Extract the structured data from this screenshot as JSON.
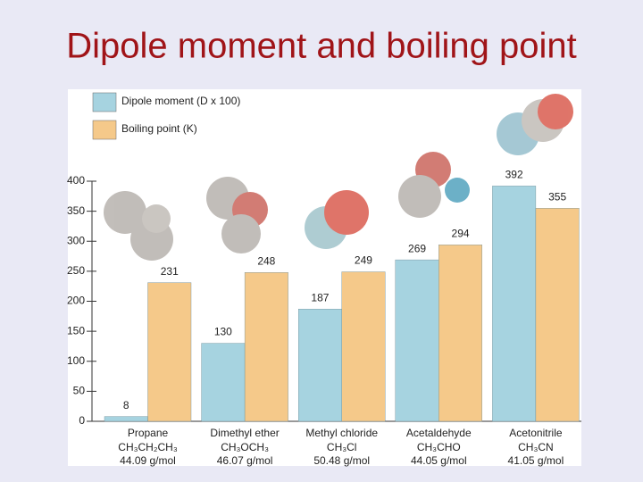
{
  "chart_data": {
    "type": "bar",
    "title": "Dipole moment and boiling point",
    "categories": [
      "Propane",
      "Dimethyl ether",
      "Methyl chloride",
      "Acetaldehyde",
      "Acetonitrile"
    ],
    "formulas": [
      "CH₃CH₂CH₃",
      "CH₃OCH₃",
      "CH₃Cl",
      "CH₃CHO",
      "CH₃CN"
    ],
    "molar_masses": [
      "44.09 g/mol",
      "46.07 g/mol",
      "50.48 g/mol",
      "44.05 g/mol",
      "41.05 g/mol"
    ],
    "series": [
      {
        "name": "Dipole moment (D x 100)",
        "color": "#a6d3e0",
        "values": [
          8,
          130,
          187,
          269,
          392
        ]
      },
      {
        "name": "Boiling point (K)",
        "color": "#f5c98a",
        "values": [
          231,
          248,
          249,
          294,
          355
        ]
      }
    ],
    "ylim": [
      0,
      400
    ],
    "yticks": [
      0,
      50,
      100,
      150,
      200,
      250,
      300,
      350,
      400
    ]
  }
}
